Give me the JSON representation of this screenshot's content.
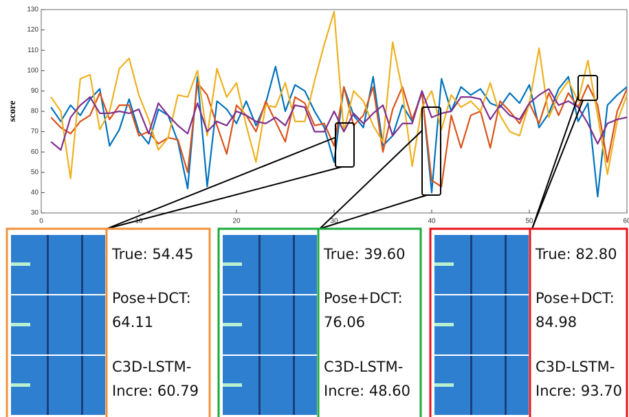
{
  "chart_data": {
    "type": "line",
    "ylabel": "score",
    "x": [
      1,
      2,
      3,
      4,
      5,
      6,
      7,
      8,
      9,
      10,
      11,
      12,
      13,
      14,
      15,
      16,
      17,
      18,
      19,
      20,
      21,
      22,
      23,
      24,
      25,
      26,
      27,
      28,
      29,
      30,
      31,
      32,
      33,
      34,
      35,
      36,
      37,
      38,
      39,
      40,
      41,
      42,
      43,
      44,
      45,
      46,
      47,
      48,
      49,
      50,
      51,
      52,
      53,
      54,
      55,
      56,
      57,
      58,
      59,
      60
    ],
    "series": [
      {
        "color": "#0072bd",
        "values": [
          82,
          75,
          83,
          78,
          86,
          91,
          63,
          71,
          86,
          70,
          64,
          81,
          78,
          65,
          42,
          97,
          43,
          85,
          81,
          74,
          85,
          73,
          84,
          102,
          80,
          93,
          90,
          80,
          72,
          55,
          92,
          78,
          72,
          97,
          63,
          68,
          83,
          75,
          90,
          40,
          96,
          80,
          92,
          88,
          91,
          84,
          82,
          89,
          84,
          93,
          72,
          79,
          91,
          97,
          75,
          84,
          38,
          83,
          88,
          92
        ]
      },
      {
        "color": "#d95319",
        "values": [
          77,
          72,
          69,
          75,
          78,
          89,
          76,
          83,
          83,
          68,
          70,
          64,
          67,
          66,
          50,
          94,
          88,
          73,
          59,
          83,
          78,
          70,
          85,
          75,
          65,
          87,
          84,
          73,
          74,
          63,
          92,
          73,
          78,
          92,
          60,
          81,
          92,
          76,
          89,
          46,
          43,
          78,
          62,
          78,
          80,
          62,
          85,
          80,
          74,
          84,
          74,
          89,
          78,
          89,
          82,
          93,
          83,
          55,
          80,
          91
        ]
      },
      {
        "color": "#edb120",
        "values": [
          87,
          80,
          47,
          96,
          98,
          71,
          80,
          101,
          106,
          88,
          76,
          61,
          67,
          88,
          87,
          100,
          68,
          101,
          87,
          94,
          73,
          55,
          83,
          82,
          94,
          75,
          75,
          95,
          113,
          129,
          70,
          90,
          85,
          73,
          65,
          114,
          90,
          53,
          82,
          90,
          71,
          88,
          82,
          85,
          80,
          94,
          78,
          70,
          68,
          84,
          111,
          77,
          88,
          95,
          85,
          105,
          78,
          49,
          75,
          88
        ]
      },
      {
        "color": "#7e2f8e",
        "values": [
          65,
          61,
          77,
          83,
          87,
          79,
          79,
          80,
          79,
          81,
          69,
          84,
          78,
          73,
          69,
          84,
          70,
          75,
          73,
          80,
          78,
          75,
          74,
          77,
          73,
          83,
          82,
          70,
          70,
          80,
          70,
          79,
          74,
          79,
          83,
          68,
          74,
          74,
          90,
          77,
          79,
          80,
          87,
          87,
          86,
          76,
          83,
          78,
          76,
          84,
          88,
          91,
          83,
          85,
          82,
          74,
          64,
          74,
          76,
          77
        ]
      }
    ],
    "xlim": [
      0,
      60
    ],
    "xticks": [
      0,
      10,
      20,
      30,
      40,
      50,
      60
    ],
    "ylim": [
      30,
      130
    ],
    "yticks": [
      30,
      40,
      50,
      60,
      70,
      80,
      90,
      100,
      110,
      120,
      130
    ]
  },
  "panels": [
    {
      "color": "#f0913a",
      "lines": [
        "True: 54.45",
        "Pose+DCT:",
        "64.11",
        "C3D-LSTM-",
        "Incre: 60.79"
      ]
    },
    {
      "color": "#1aaa3a",
      "lines": [
        "True: 39.60",
        "Pose+DCT:",
        "76.06",
        "C3D-LSTM-",
        "Incre: 48.60"
      ]
    },
    {
      "color": "#e8121a",
      "lines": [
        "True: 82.80",
        "Pose+DCT:",
        "84.98",
        "C3D-LSTM-",
        "Incre: 93.70"
      ]
    }
  ]
}
